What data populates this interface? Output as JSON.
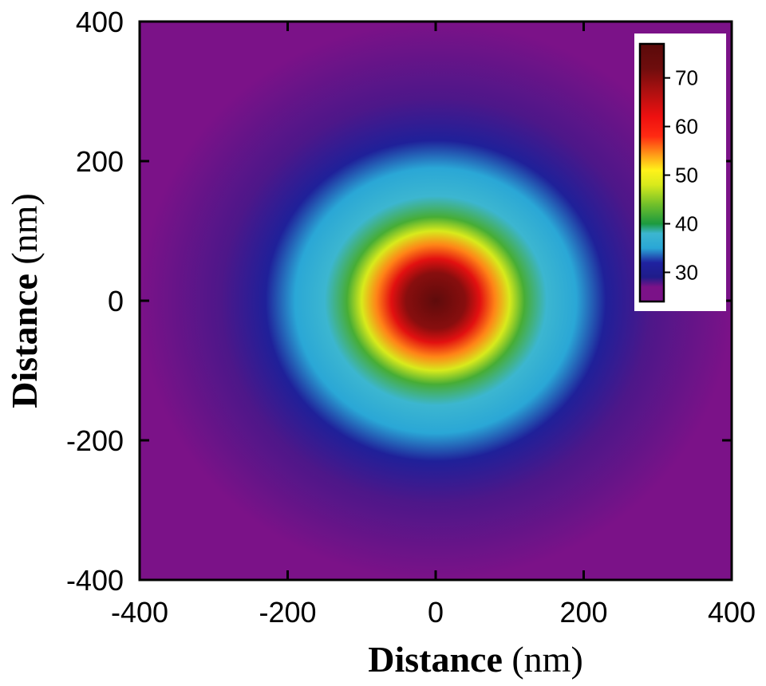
{
  "chart_data": {
    "type": "heatmap",
    "title": "",
    "xlabel": "Distance",
    "xlabel_unit": "(nm)",
    "ylabel": "Distance",
    "ylabel_unit": "(nm)",
    "xlim": [
      -400,
      400
    ],
    "ylim": [
      -400,
      400
    ],
    "x_ticks": [
      -400,
      -200,
      0,
      200,
      400
    ],
    "y_ticks": [
      -400,
      -200,
      0,
      200,
      400
    ],
    "x_tick_labels": [
      "-400",
      "-200",
      "0",
      "200",
      "400"
    ],
    "y_tick_labels": [
      "-400",
      "-200",
      "0",
      "200",
      "400"
    ],
    "grid": false,
    "pattern": "radially symmetric, centered at (0, 0)",
    "radial_profile": {
      "radius_nm": [
        0,
        40,
        60,
        80,
        100,
        120,
        150,
        190,
        230,
        290,
        400,
        570
      ],
      "value": [
        76,
        70,
        63,
        55,
        48,
        42,
        38,
        35,
        31,
        28,
        26,
        25.5
      ]
    },
    "colorbar": {
      "location": "top-right",
      "min": 24,
      "max": 77,
      "ticks": [
        30,
        40,
        50,
        60,
        70
      ],
      "tick_labels": [
        "30",
        "40",
        "50",
        "60",
        "70"
      ],
      "colors": [
        {
          "value": 24,
          "color": "#7b1288"
        },
        {
          "value": 27,
          "color": "#7b1288"
        },
        {
          "value": 29,
          "color": "#1f1c8a"
        },
        {
          "value": 32,
          "color": "#1f22a0"
        },
        {
          "value": 35,
          "color": "#2aa7d6"
        },
        {
          "value": 38,
          "color": "#3cb6d0"
        },
        {
          "value": 40,
          "color": "#1c9a3f"
        },
        {
          "value": 44,
          "color": "#72c02a"
        },
        {
          "value": 48,
          "color": "#d8ea1c"
        },
        {
          "value": 51,
          "color": "#fff21a"
        },
        {
          "value": 54,
          "color": "#ffa018"
        },
        {
          "value": 58,
          "color": "#ff2a12"
        },
        {
          "value": 62,
          "color": "#ee1010"
        },
        {
          "value": 67,
          "color": "#b01010"
        },
        {
          "value": 72,
          "color": "#6e0d0d"
        },
        {
          "value": 77,
          "color": "#5a0a0a"
        }
      ]
    }
  }
}
